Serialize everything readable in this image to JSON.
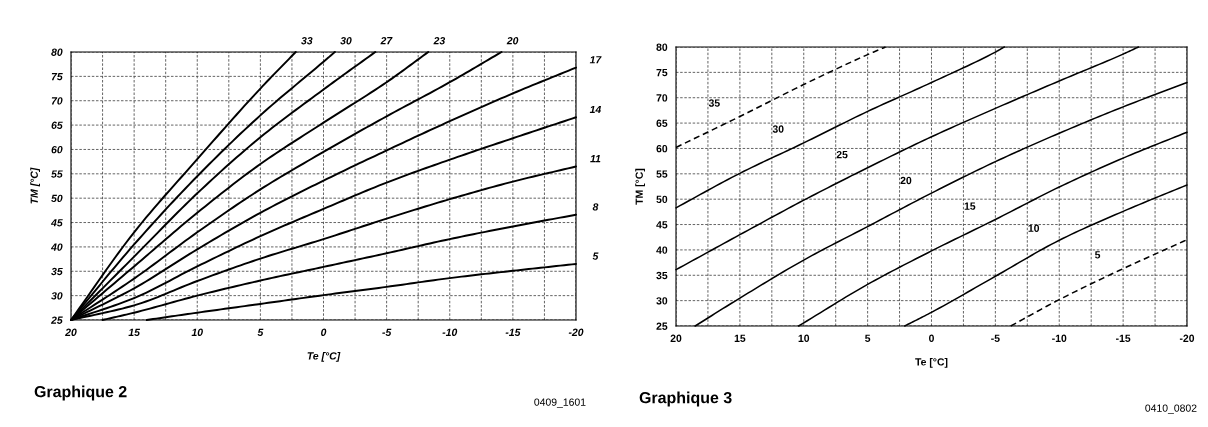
{
  "chart_data": [
    {
      "type": "line",
      "title": "Graphique 2",
      "xlabel": "Te [°C]",
      "ylabel": "TM [°C]",
      "xlim": [
        20,
        -20
      ],
      "ylim": [
        25,
        80
      ],
      "xticks": [
        20,
        {
          "value": 17.5,
          "label": null
        },
        15,
        {
          "value": 12.5,
          "label": null
        },
        10,
        {
          "value": 7.5,
          "label": null
        },
        5,
        {
          "value": 2.5,
          "label": null
        },
        0,
        {
          "value": -2.5,
          "label": null
        },
        -5,
        {
          "value": -7.5,
          "label": null
        },
        -10,
        {
          "value": -12.5,
          "label": null
        },
        -15,
        {
          "value": -17.5,
          "label": null
        },
        -20
      ],
      "yticks": [
        25,
        30,
        35,
        40,
        45,
        50,
        55,
        60,
        65,
        70,
        75,
        80
      ],
      "grid": true,
      "annotations": [
        "0409_1601"
      ],
      "series": [
        {
          "name": "33",
          "color": "#000000",
          "x": [
            20,
            15,
            10,
            5,
            2.2
          ],
          "values": [
            25,
            43,
            58,
            72.5,
            80
          ]
        },
        {
          "name": "30",
          "color": "#000000",
          "x": [
            20,
            15,
            10,
            5,
            0,
            -0.9
          ],
          "values": [
            25,
            40.5,
            54.5,
            67,
            78,
            80
          ]
        },
        {
          "name": "27",
          "color": "#000000",
          "x": [
            20,
            15,
            10,
            5,
            0,
            -4.1
          ],
          "values": [
            25,
            38,
            51,
            62.5,
            72.3,
            80
          ]
        },
        {
          "name": "23",
          "color": "#000000",
          "x": [
            20,
            15,
            10,
            5,
            0,
            -5,
            -8.3
          ],
          "values": [
            25,
            36,
            47,
            57,
            65.5,
            73.8,
            80
          ]
        },
        {
          "name": "20",
          "color": "#000000",
          "x": [
            20,
            15,
            10,
            5,
            0,
            -5,
            -10,
            -14.1
          ],
          "values": [
            25,
            33.5,
            43,
            51.8,
            59.5,
            66.8,
            73.8,
            80
          ]
        },
        {
          "name": "17",
          "color": "#000000",
          "x": [
            20,
            15,
            10,
            5,
            0,
            -5,
            -10,
            -15,
            -20
          ],
          "values": [
            25,
            31.5,
            39.5,
            47,
            53.6,
            59.8,
            65.8,
            71.5,
            76.8
          ]
        },
        {
          "name": "14",
          "color": "#000000",
          "x": [
            20,
            15,
            10,
            5,
            0,
            -5,
            -10,
            -15,
            -20
          ],
          "values": [
            25,
            29.5,
            36,
            42.2,
            47.8,
            53.2,
            57.9,
            62.3,
            66.6
          ]
        },
        {
          "name": "11",
          "color": "#000000",
          "x": [
            20,
            15,
            10,
            5,
            0,
            -5,
            -10,
            -15,
            -20
          ],
          "values": [
            25,
            28,
            33,
            37.6,
            41.6,
            45.8,
            49.8,
            53.4,
            56.5
          ]
        },
        {
          "name": "8",
          "color": "#000000",
          "x": [
            17.5,
            15,
            10,
            5,
            0,
            -5,
            -10,
            -15,
            -20
          ],
          "values": [
            25,
            26.5,
            30,
            33.1,
            35.9,
            38.7,
            41.6,
            44.2,
            46.6
          ]
        },
        {
          "name": "5",
          "color": "#000000",
          "x": [
            14,
            10,
            5,
            0,
            -5,
            -10,
            -15,
            -20
          ],
          "values": [
            25,
            26.5,
            28.3,
            30.1,
            31.8,
            33.6,
            35.1,
            36.5
          ]
        }
      ]
    },
    {
      "type": "line",
      "title": "Graphique 3",
      "xlabel": "Te [°C]",
      "ylabel": "TM [°C]",
      "xlim": [
        20,
        -20
      ],
      "ylim": [
        25,
        80
      ],
      "xticks": [
        20,
        {
          "value": 17.5,
          "label": null
        },
        15,
        {
          "value": 12.5,
          "label": null
        },
        10,
        {
          "value": 7.5,
          "label": null
        },
        5,
        {
          "value": 2.5,
          "label": null
        },
        0,
        {
          "value": -2.5,
          "label": null
        },
        -5,
        {
          "value": -7.5,
          "label": null
        },
        -10,
        {
          "value": -12.5,
          "label": null
        },
        -15,
        {
          "value": -17.5,
          "label": null
        },
        -20
      ],
      "yticks": [
        25,
        30,
        35,
        40,
        45,
        50,
        55,
        60,
        65,
        70,
        75,
        80
      ],
      "grid": true,
      "annotations": [
        "0410_0802"
      ],
      "series": [
        {
          "name": "35",
          "color": "#000000",
          "line_style": "dashed",
          "x": [
            20,
            15,
            10,
            5,
            3.6
          ],
          "values": [
            60.2,
            66.3,
            72.6,
            78.5,
            80
          ]
        },
        {
          "name": "30",
          "color": "#000000",
          "line_style": "solid",
          "x": [
            20,
            15,
            10,
            5,
            0,
            -5,
            -5.7
          ],
          "values": [
            48.3,
            55.1,
            61.1,
            67.3,
            73,
            79,
            80
          ]
        },
        {
          "name": "25",
          "color": "#000000",
          "line_style": "solid",
          "x": [
            20,
            15,
            10,
            5,
            0,
            -5,
            -10,
            -15,
            -16.2
          ],
          "values": [
            36.1,
            43,
            49.8,
            56.2,
            62.3,
            67.9,
            73.3,
            78.6,
            80
          ]
        },
        {
          "name": "20",
          "color": "#000000",
          "line_style": "solid",
          "x": [
            18.5,
            15,
            10,
            5,
            0,
            -5,
            -10,
            -15,
            -20
          ],
          "values": [
            25,
            30.5,
            38,
            44.6,
            51.2,
            57.4,
            63,
            68.2,
            73
          ]
        },
        {
          "name": "15",
          "color": "#000000",
          "line_style": "solid",
          "x": [
            10.4,
            5,
            0,
            -5,
            -10,
            -15,
            -20
          ],
          "values": [
            25,
            33.2,
            39.8,
            46,
            52.4,
            58.1,
            63.2
          ]
        },
        {
          "name": "10",
          "color": "#000000",
          "line_style": "solid",
          "x": [
            2.1,
            0,
            -5,
            -10,
            -15,
            -20
          ],
          "values": [
            25,
            27.7,
            34.8,
            41.9,
            47.6,
            52.8
          ]
        },
        {
          "name": "5",
          "color": "#000000",
          "line_style": "dashed",
          "x": [
            -6.2,
            -10,
            -15,
            -20
          ],
          "values": [
            25,
            30.2,
            36.3,
            42
          ]
        }
      ]
    }
  ]
}
